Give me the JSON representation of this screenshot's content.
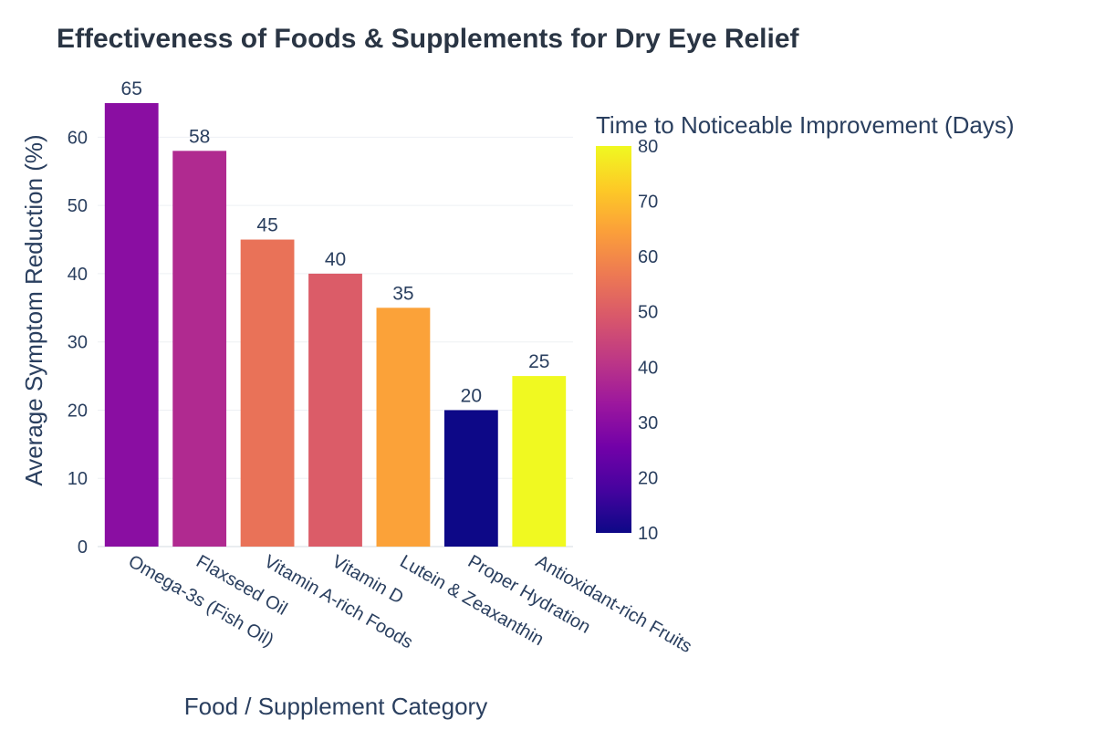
{
  "chart_data": {
    "type": "bar",
    "title": "Effectiveness of Foods & Supplements for Dry Eye Relief",
    "xlabel": "Food / Supplement Category",
    "ylabel": "Average Symptom Reduction (%)",
    "categories": [
      "Omega-3s (Fish Oil)",
      "Flaxseed Oil",
      "Vitamin A-rich Foods",
      "Vitamin D",
      "Lutein & Zeaxanthin",
      "Proper Hydration",
      "Antioxidant-rich Fruits"
    ],
    "values": [
      65,
      58,
      45,
      40,
      35,
      20,
      25
    ],
    "value_labels": [
      "65",
      "58",
      "45",
      "40",
      "35",
      "20",
      "25"
    ],
    "color_values": [
      30,
      38,
      55,
      50,
      65,
      10,
      80
    ],
    "ylim": [
      0,
      65
    ],
    "yticks": [
      0,
      10,
      20,
      30,
      40,
      50,
      60
    ],
    "ytick_labels": [
      "0",
      "10",
      "20",
      "30",
      "40",
      "50",
      "60"
    ],
    "grid": true,
    "legend": "none",
    "colorbar": {
      "title": "Time to Noticeable Improvement (Days)",
      "range": [
        10,
        80
      ],
      "ticks": [
        10,
        20,
        30,
        40,
        50,
        60,
        70,
        80
      ],
      "tick_labels": [
        "10",
        "20",
        "30",
        "40",
        "50",
        "60",
        "70",
        "80"
      ],
      "colorscale": "plasma",
      "colorscale_stops": [
        "#0d0887",
        "#46039f",
        "#7201a8",
        "#9c179e",
        "#bd3786",
        "#d8576b",
        "#ed7953",
        "#fb9f3a",
        "#fdca26",
        "#f0f921"
      ]
    }
  }
}
